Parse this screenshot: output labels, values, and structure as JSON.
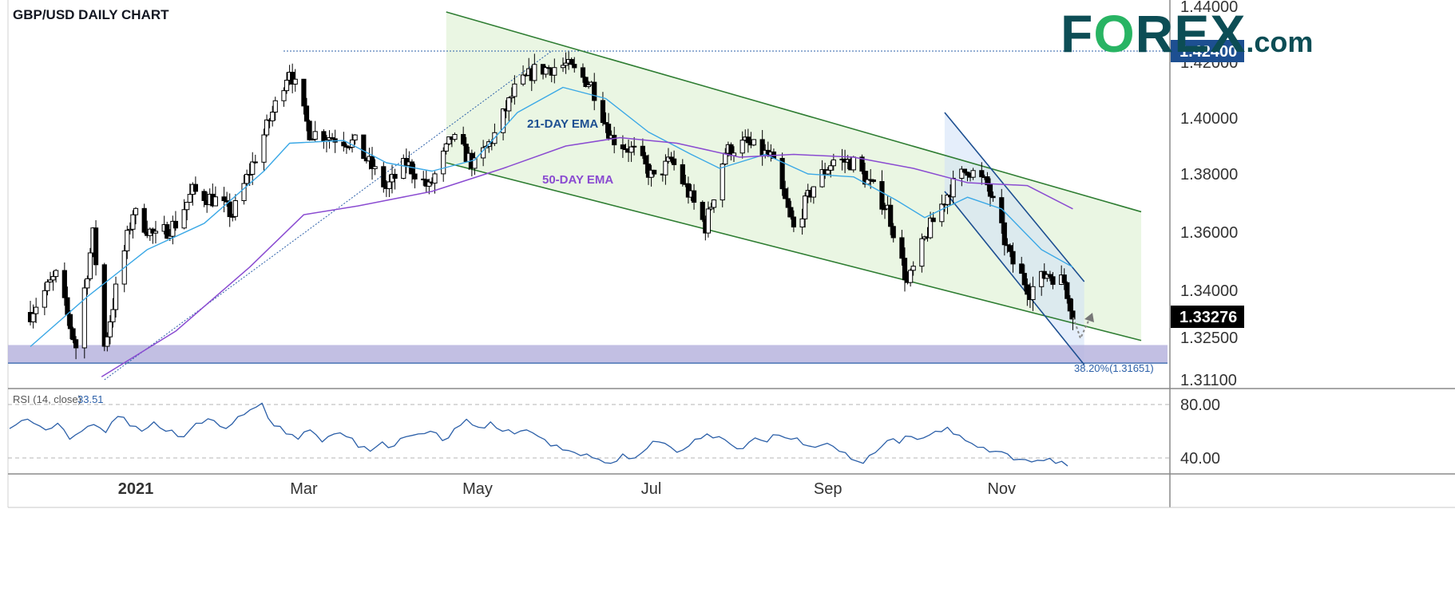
{
  "chart_title": "GBP/USD DAILY CHART",
  "brand": {
    "left": "F",
    "mid": "O",
    "right": "REX",
    "suffix": ".com"
  },
  "colors": {
    "candle_up": "#ffffff",
    "candle_down": "#000000",
    "ema21": "#3aa8e6",
    "ema50": "#8a4bd1",
    "channel": "#2e7d32",
    "channel_fill": "#e8f5e0",
    "support_zone": "#b7b4de",
    "rsi": "#2b5fa8",
    "price_label_bg": "#1d4f91",
    "current_label_bg": "#000000",
    "brand_dark": "#0c4d55",
    "brand_green": "#28b463"
  },
  "chart_data": {
    "type": "candlestick",
    "title": "GBP/USD DAILY CHART",
    "y_ticks": [
      "1.44000",
      "1.42000",
      "1.40000",
      "1.38000",
      "1.36000",
      "1.34000",
      "1.32500",
      "1.31100"
    ],
    "y_tick_values": [
      1.44,
      1.42,
      1.4,
      1.38,
      1.36,
      1.34,
      1.325,
      1.311
    ],
    "x_ticks": [
      "2021",
      "Mar",
      "May",
      "Jul",
      "Sep",
      "Nov"
    ],
    "price_labels": {
      "high_level": "1.42400",
      "current": "1.33276"
    },
    "annotations": {
      "ema21": "21-DAY EMA",
      "ema50": "50-DAY EMA",
      "fib": "38.20%(1.31651)"
    },
    "levels": {
      "high": 1.424,
      "current": 1.33276,
      "fib_38": 1.31651,
      "support_zone": [
        1.31651,
        1.3225
      ]
    },
    "trend_points": {
      "price_path": [
        [
          "2020-11-25",
          1.333
        ],
        [
          "2020-12-04",
          1.345
        ],
        [
          "2020-12-11",
          1.322
        ],
        [
          "2020-12-17",
          1.359
        ],
        [
          "2020-12-21",
          1.322
        ],
        [
          "2020-12-31",
          1.367
        ],
        [
          "2021-01-08",
          1.358
        ],
        [
          "2021-01-15",
          1.363
        ],
        [
          "2021-01-21",
          1.374
        ],
        [
          "2021-01-29",
          1.371
        ],
        [
          "2021-02-04",
          1.366
        ],
        [
          "2021-02-12",
          1.386
        ],
        [
          "2021-02-24",
          1.418
        ],
        [
          "2021-03-03",
          1.395
        ],
        [
          "2021-03-12",
          1.393
        ],
        [
          "2021-03-19",
          1.391
        ],
        [
          "2021-03-30",
          1.375
        ],
        [
          "2021-04-06",
          1.384
        ],
        [
          "2021-04-14",
          1.375
        ],
        [
          "2021-04-22",
          1.393
        ],
        [
          "2021-04-30",
          1.383
        ],
        [
          "2021-05-07",
          1.394
        ],
        [
          "2021-05-14",
          1.41
        ],
        [
          "2021-05-21",
          1.417
        ],
        [
          "2021-06-01",
          1.419
        ],
        [
          "2021-06-10",
          1.412
        ],
        [
          "2021-06-17",
          1.393
        ],
        [
          "2021-06-25",
          1.388
        ],
        [
          "2021-07-02",
          1.378
        ],
        [
          "2021-07-08",
          1.385
        ],
        [
          "2021-07-20",
          1.362
        ],
        [
          "2021-07-27",
          1.388
        ],
        [
          "2021-08-03",
          1.391
        ],
        [
          "2021-08-12",
          1.386
        ],
        [
          "2021-08-20",
          1.361
        ],
        [
          "2021-08-27",
          1.376
        ],
        [
          "2021-09-03",
          1.385
        ],
        [
          "2021-09-10",
          1.384
        ],
        [
          "2021-09-22",
          1.368
        ],
        [
          "2021-09-29",
          1.342
        ],
        [
          "2021-10-06",
          1.36
        ],
        [
          "2021-10-14",
          1.375
        ],
        [
          "2021-10-20",
          1.382
        ],
        [
          "2021-10-27",
          1.376
        ],
        [
          "2021-11-04",
          1.351
        ],
        [
          "2021-11-11",
          1.34
        ],
        [
          "2021-11-17",
          1.346
        ],
        [
          "2021-11-23",
          1.343
        ],
        [
          "2021-11-26",
          1.33276
        ]
      ],
      "ema21_path": [
        [
          "2020-11-25",
          1.322
        ],
        [
          "2020-12-15",
          1.338
        ],
        [
          "2021-01-05",
          1.354
        ],
        [
          "2021-01-25",
          1.363
        ],
        [
          "2021-02-15",
          1.381
        ],
        [
          "2021-02-24",
          1.391
        ],
        [
          "2021-03-15",
          1.392
        ],
        [
          "2021-03-30",
          1.384
        ],
        [
          "2021-04-15",
          1.381
        ],
        [
          "2021-04-30",
          1.385
        ],
        [
          "2021-05-15",
          1.402
        ],
        [
          "2021-05-31",
          1.411
        ],
        [
          "2021-06-15",
          1.407
        ],
        [
          "2021-06-30",
          1.395
        ],
        [
          "2021-07-15",
          1.387
        ],
        [
          "2021-07-25",
          1.382
        ],
        [
          "2021-08-10",
          1.387
        ],
        [
          "2021-08-25",
          1.38
        ],
        [
          "2021-09-10",
          1.379
        ],
        [
          "2021-09-25",
          1.371
        ],
        [
          "2021-10-05",
          1.365
        ],
        [
          "2021-10-20",
          1.372
        ],
        [
          "2021-11-01",
          1.368
        ],
        [
          "2021-11-15",
          1.354
        ],
        [
          "2021-11-26",
          1.348
        ]
      ],
      "ema50_path": [
        [
          "2020-12-20",
          1.312
        ],
        [
          "2021-01-15",
          1.327
        ],
        [
          "2021-02-10",
          1.348
        ],
        [
          "2021-03-01",
          1.366
        ],
        [
          "2021-03-20",
          1.369
        ],
        [
          "2021-04-15",
          1.374
        ],
        [
          "2021-05-10",
          1.382
        ],
        [
          "2021-06-01",
          1.39
        ],
        [
          "2021-06-20",
          1.393
        ],
        [
          "2021-07-10",
          1.391
        ],
        [
          "2021-08-01",
          1.386
        ],
        [
          "2021-08-20",
          1.387
        ],
        [
          "2021-09-10",
          1.386
        ],
        [
          "2021-10-01",
          1.382
        ],
        [
          "2021-10-20",
          1.377
        ],
        [
          "2021-11-10",
          1.376
        ],
        [
          "2021-11-26",
          1.368
        ]
      ],
      "channel_upper": [
        [
          "2021-04-20",
          1.438
        ],
        [
          "2021-12-20",
          1.367
        ]
      ],
      "channel_lower": [
        [
          "2021-04-20",
          1.384
        ],
        [
          "2021-12-20",
          1.324
        ]
      ],
      "wedge_upper": [
        [
          "2021-10-12",
          1.402
        ],
        [
          "2021-11-30",
          1.343
        ]
      ],
      "wedge_lower": [
        [
          "2021-10-12",
          1.374
        ],
        [
          "2021-11-30",
          1.316
        ]
      ]
    },
    "rsi": {
      "label": "RSI (14, close)",
      "value": "33.51",
      "ticks": [
        "80.00",
        "40.00"
      ],
      "tick_values": [
        80,
        40
      ],
      "points": [
        62,
        68,
        66,
        61,
        66,
        54,
        60,
        65,
        59,
        71,
        64,
        60,
        67,
        60,
        56,
        61,
        66,
        68,
        62,
        71,
        76,
        81,
        64,
        58,
        54,
        61,
        52,
        58,
        56,
        48,
        45,
        52,
        49,
        56,
        58,
        60,
        53,
        62,
        69,
        63,
        67,
        60,
        58,
        61,
        56,
        49,
        46,
        44,
        43,
        39,
        36,
        43,
        40,
        47,
        52,
        48,
        46,
        54,
        58,
        56,
        50,
        47,
        55,
        52,
        57,
        54,
        50,
        48,
        51,
        45,
        39,
        36,
        44,
        53,
        51,
        56,
        55,
        60,
        63,
        57,
        51,
        48,
        45,
        43,
        39,
        37,
        38,
        36,
        34
      ]
    }
  }
}
